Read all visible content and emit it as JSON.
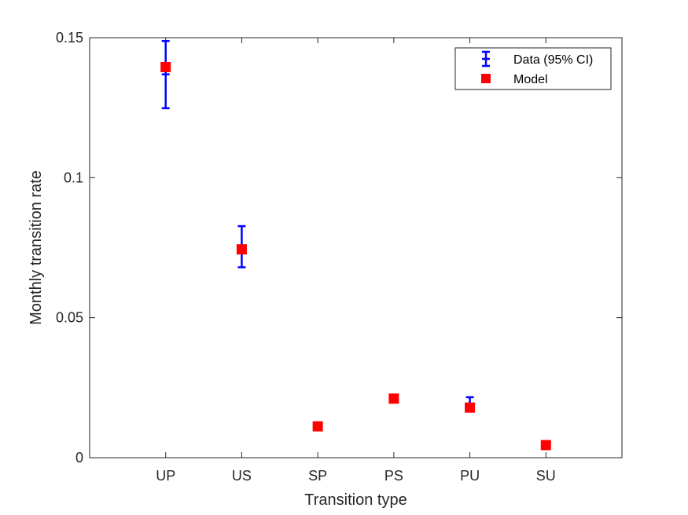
{
  "chart_data": {
    "type": "scatter",
    "title": "",
    "xlabel": "Transition type",
    "ylabel": "Monthly transition rate",
    "categories": [
      "UP",
      "US",
      "SP",
      "PS",
      "PU",
      "SU"
    ],
    "ylim": [
      0,
      0.15
    ],
    "yticks": [
      0,
      0.05,
      0.1,
      0.15
    ],
    "ytick_labels": [
      "0",
      "0.05",
      "0.1",
      "0.15"
    ],
    "xlim": [
      0,
      7
    ],
    "grid": false,
    "legend_position": "top-right",
    "series": [
      {
        "name": "Data (95% CI)",
        "kind": "errorbar",
        "color": "#0000ff",
        "values": [
          0.1369,
          0.0744,
          0.0112,
          0.0213,
          0.0185,
          0.0042
        ],
        "lower": [
          0.1248,
          0.068,
          0.0104,
          0.0203,
          0.0169,
          0.0037
        ],
        "upper": [
          0.1488,
          0.0827,
          0.012,
          0.0221,
          0.0216,
          0.0047
        ]
      },
      {
        "name": "Model",
        "kind": "marker",
        "color": "#ff0000",
        "values": [
          0.1395,
          0.0744,
          0.0112,
          0.0211,
          0.0179,
          0.0045
        ]
      }
    ]
  }
}
